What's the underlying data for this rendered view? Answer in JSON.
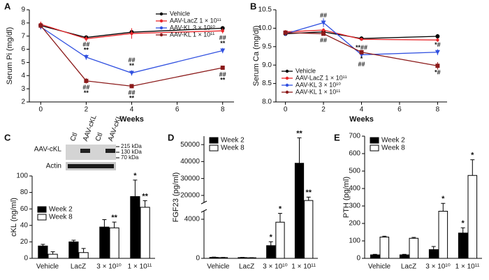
{
  "chart_data": [
    {
      "panel": "A",
      "type": "line",
      "x_label": "Weeks",
      "y_label": "Serum Pi (mg/dl)",
      "x": [
        0,
        2,
        4,
        8
      ],
      "xlim": [
        -0.5,
        8.5
      ],
      "xticks": [
        0,
        2,
        4,
        6,
        8
      ],
      "ylim": [
        2,
        9
      ],
      "yticks": [
        2,
        3,
        4,
        5,
        6,
        7,
        8,
        9
      ],
      "legend": "upper right",
      "series": [
        {
          "name": "Vehicle",
          "color": "#000000",
          "marker": "circle",
          "values": [
            7.8,
            6.9,
            7.3,
            7.6
          ],
          "errors": [
            0.2,
            0.15,
            0.2,
            0.15
          ]
        },
        {
          "name": "AAV-LacZ 1 × 10¹¹",
          "color": "#e8262a",
          "marker": "circle",
          "values": [
            7.9,
            6.8,
            7.2,
            7.4
          ],
          "errors": [
            0.2,
            0.2,
            0.4,
            0.2
          ]
        },
        {
          "name": "AAV-KL 3 × 10¹⁰",
          "color": "#3050e0",
          "marker": "triangle",
          "values": [
            7.7,
            5.4,
            4.2,
            5.9
          ],
          "errors": [
            0.2,
            0.2,
            0.2,
            0.2
          ],
          "annotation_side": "above",
          "annotations": [
            null,
            [
              "##",
              "**"
            ],
            [
              "##",
              "**"
            ],
            [
              "##",
              "**"
            ]
          ]
        },
        {
          "name": "AAV-KL 1 × 10¹¹",
          "color": "#8b1a1a",
          "marker": "square",
          "values": [
            7.8,
            3.6,
            3.2,
            4.6
          ],
          "errors": [
            0.2,
            0.2,
            0.15,
            0.15
          ],
          "annotation_side": "below",
          "annotations": [
            null,
            [
              "##",
              "**"
            ],
            [
              "##",
              "**"
            ],
            [
              "##",
              "**"
            ]
          ]
        }
      ]
    },
    {
      "panel": "B",
      "type": "line",
      "x_label": "Weeks",
      "y_label": "Serum Ca (mg/dl)",
      "x": [
        0,
        2,
        4,
        8
      ],
      "xlim": [
        -0.5,
        8.5
      ],
      "xticks": [
        0,
        2,
        4,
        6,
        8
      ],
      "ylim": [
        8.0,
        10.5
      ],
      "yticks": [
        {
          "value": 8.0,
          "label": "8.0"
        },
        8.5,
        {
          "value": 9.0,
          "label": "9.0"
        },
        9.5,
        {
          "value": 10.0,
          "label": "10.0"
        },
        10.5
      ],
      "legend": "lower left",
      "series": [
        {
          "name": "Vehicle",
          "color": "#000000",
          "marker": "circle",
          "values": [
            9.85,
            9.9,
            9.72,
            9.78
          ],
          "errors": [
            0.04,
            0.04,
            0.04,
            0.06
          ]
        },
        {
          "name": "AAV-LacZ 1 × 10¹¹",
          "color": "#e8262a",
          "marker": "circle",
          "values": [
            9.9,
            9.95,
            9.7,
            9.68
          ],
          "errors": [
            0.05,
            0.05,
            0.04,
            0.05
          ]
        },
        {
          "name": "AAV-KL 3 × 10¹⁰",
          "color": "#3050e0",
          "marker": "triangle",
          "values": [
            9.85,
            10.15,
            9.28,
            9.35
          ],
          "errors": [
            0.04,
            0.12,
            0.08,
            0.08
          ],
          "annotation_side": "above",
          "annotations": [
            null,
            [
              "##"
            ],
            [
              "**##"
            ],
            [
              "*#"
            ]
          ]
        },
        {
          "name": "AAV-KL 1 × 10¹¹",
          "color": "#8b1a1a",
          "marker": "square",
          "values": [
            9.88,
            9.85,
            9.35,
            8.98
          ],
          "errors": [
            0.04,
            0.05,
            0.06,
            0.1
          ],
          "annotation_side": "below",
          "annotations": [
            null,
            [
              "##"
            ],
            [
              "*",
              "##"
            ],
            [
              "*#"
            ]
          ]
        }
      ]
    },
    {
      "panel": "C",
      "type": "bar",
      "y_label": "cKL (ng/ml)",
      "categories": [
        "Vehicle",
        "LacZ",
        "3 × 10¹⁰",
        "1 × 10¹¹"
      ],
      "ylim": [
        0,
        100
      ],
      "yticks": [
        0,
        20,
        40,
        60,
        80,
        100
      ],
      "legend": "center left",
      "series": [
        {
          "name": "Week 2",
          "color": "#000000",
          "values": [
            15,
            20,
            38,
            75
          ],
          "errors": [
            2,
            2,
            9,
            20
          ],
          "annotations": [
            null,
            null,
            null,
            "*"
          ]
        },
        {
          "name": "Week 8",
          "color": "#ffffff",
          "values": [
            5,
            7,
            37,
            62
          ],
          "errors": [
            3,
            5,
            7,
            8
          ],
          "annotations": [
            null,
            null,
            "**",
            "**"
          ]
        }
      ],
      "inset": {
        "row_labels": [
          "AAV-cKL",
          "Actin"
        ],
        "column_labels": [
          "Ctl",
          "AAV-cKL",
          "Ctl",
          "AAV-cKL"
        ],
        "size_markers": [
          "215 kDa",
          "130 kDa",
          "70 kDa"
        ]
      }
    },
    {
      "panel": "D",
      "type": "bar",
      "y_label": "FGF23 (pg/ml)",
      "categories": [
        "Vehicle",
        "LacZ",
        "3 × 10¹⁰",
        "1 × 10¹¹"
      ],
      "ylim": [
        0,
        55000
      ],
      "ybreak": [
        5000,
        15000
      ],
      "yticks": [
        0,
        4000,
        20000,
        30000,
        40000,
        50000
      ],
      "legend": "upper left",
      "series": [
        {
          "name": "Week 2",
          "color": "#000000",
          "values": [
            100,
            80,
            1300,
            39000
          ],
          "errors": [
            30,
            20,
            400,
            15000
          ],
          "annotations": [
            null,
            null,
            "*",
            "**"
          ]
        },
        {
          "name": "Week 8",
          "color": "#ffffff",
          "values": [
            80,
            60,
            3700,
            17000
          ],
          "errors": [
            20,
            15,
            900,
            2000
          ],
          "annotations": [
            null,
            null,
            "*",
            "**"
          ]
        }
      ]
    },
    {
      "panel": "E",
      "type": "bar",
      "y_label": "PTH (pg/ml)",
      "categories": [
        "Vehicle",
        "LacZ",
        "3 × 10¹⁰",
        "1 × 10¹¹"
      ],
      "ylim": [
        0,
        700
      ],
      "yticks": [
        0,
        100,
        200,
        300,
        400,
        500,
        600,
        700
      ],
      "legend": "upper left",
      "series": [
        {
          "name": "Week 2",
          "color": "#000000",
          "values": [
            20,
            20,
            50,
            145
          ],
          "errors": [
            3,
            3,
            18,
            30
          ],
          "annotations": [
            null,
            null,
            null,
            "*"
          ]
        },
        {
          "name": "Week 8",
          "color": "#ffffff",
          "values": [
            122,
            115,
            270,
            475
          ],
          "errors": [
            5,
            5,
            45,
            90
          ],
          "annotations": [
            null,
            null,
            "*",
            "*"
          ]
        }
      ]
    }
  ]
}
